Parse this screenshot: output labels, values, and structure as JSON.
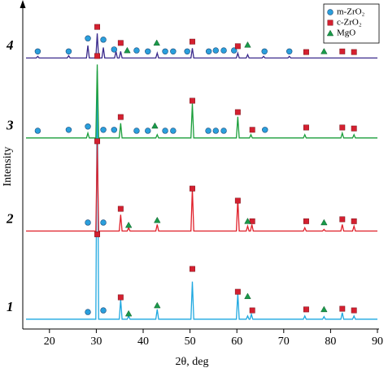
{
  "chart_data": {
    "type": "line",
    "xlabel": "2θ, deg",
    "ylabel": "Intensity",
    "xlim": [
      15,
      90
    ],
    "xticks": [
      20,
      30,
      40,
      50,
      60,
      70,
      80,
      90
    ],
    "ylim": [
      0,
      100
    ],
    "legend": "upper right",
    "patterns": [
      {
        "label": "1",
        "color": "#1fa8e0",
        "x": [
          15,
          29.9,
          30.2,
          30.5,
          34.9,
          35.2,
          35.5,
          36.6,
          36.9,
          37.2,
          42.7,
          43,
          43.3,
          50.2,
          50.5,
          50.8,
          59.9,
          60.2,
          60.5,
          62,
          62.3,
          62.6,
          62.8,
          63.1,
          63.4,
          74.2,
          74.5,
          74.8,
          78.3,
          78.6,
          78.9,
          82.2,
          82.5,
          82.8,
          84.7,
          85,
          85.3,
          90
        ],
        "values": [
          3,
          3,
          79,
          3,
          3,
          9,
          3,
          3,
          4,
          3,
          3,
          6,
          3,
          3,
          14.5,
          3,
          3,
          11,
          3,
          3,
          4,
          3,
          3,
          4.5,
          3,
          3,
          4,
          3,
          3,
          3.8,
          3,
          3,
          5,
          3,
          3,
          4,
          3,
          3
        ]
      },
      {
        "label": "2",
        "color": "#e0202a",
        "x": [
          15,
          29.9,
          30.2,
          30.5,
          34.9,
          35.2,
          35.5,
          36.6,
          36.9,
          37.2,
          42.7,
          43,
          43.3,
          50.2,
          50.5,
          50.8,
          59.9,
          60.2,
          60.5,
          62,
          62.3,
          62.6,
          62.9,
          63.2,
          63.5,
          74.2,
          74.5,
          74.8,
          78.3,
          78.6,
          78.9,
          82.2,
          82.5,
          82.8,
          84.7,
          85,
          85.3,
          90
        ],
        "values": [
          30,
          30,
          57,
          30,
          30,
          35,
          30,
          30,
          31,
          30,
          30,
          32,
          30,
          30,
          43,
          30,
          30,
          40,
          30,
          30,
          31.5,
          30,
          30,
          32,
          30,
          30,
          31,
          30,
          30,
          30.5,
          30,
          30,
          32,
          30,
          30,
          31.5,
          30,
          30
        ]
      },
      {
        "label": "3",
        "color": "#1a9e3a",
        "x": [
          15,
          27.9,
          28.2,
          28.5,
          29.9,
          30.2,
          30.5,
          34.9,
          35.2,
          35.5,
          42.7,
          43,
          43.3,
          50.2,
          50.5,
          50.8,
          59.9,
          60.2,
          60.5,
          62.7,
          63,
          63.3,
          74.2,
          74.5,
          74.8,
          82.2,
          82.5,
          82.8,
          84.7,
          85,
          85.3,
          90
        ],
        "values": [
          58.5,
          58.5,
          60,
          58.5,
          58.5,
          81,
          58.5,
          58.5,
          63,
          58.5,
          58.5,
          59.5,
          58.5,
          58.5,
          69,
          58.5,
          58.5,
          65,
          58.5,
          58.5,
          59.5,
          58.5,
          58.5,
          59.5,
          58.5,
          58.5,
          60,
          58.5,
          58.5,
          59.5,
          58.5,
          58.5
        ]
      },
      {
        "label": "4",
        "color": "#3a2a8c",
        "x": [
          15,
          17.2,
          17.5,
          17.8,
          23.8,
          24.1,
          24.4,
          27.9,
          28.2,
          28.5,
          29.9,
          30.2,
          30.5,
          31.2,
          31.5,
          31.8,
          33.9,
          34.2,
          34.5,
          34.9,
          35.2,
          35.5,
          42.7,
          43,
          43.3,
          50.2,
          50.5,
          50.8,
          59.9,
          60.2,
          60.5,
          62,
          62.3,
          62.6,
          65.4,
          65.7,
          66,
          70.9,
          71.2,
          71.5,
          90
        ],
        "values": [
          83,
          83,
          83.5,
          83,
          83,
          83.7,
          83,
          83,
          86.8,
          83,
          83,
          90.5,
          83,
          83,
          86.2,
          83,
          83,
          85,
          83,
          83,
          85,
          83,
          83,
          84.5,
          83,
          83,
          86,
          83,
          83,
          84.5,
          83,
          83,
          84,
          83,
          83,
          83.5,
          83,
          83,
          83.5,
          83,
          83
        ]
      }
    ],
    "markers": [
      {
        "name": "m-ZrO₂",
        "color": "#2a9fdc",
        "shape": "circle",
        "x": [
          28.2,
          31.5,
          28.2,
          31.5,
          17.5,
          24.1,
          28.2,
          31.5,
          33.8,
          38.6,
          41,
          44.7,
          46.4,
          53.9,
          55.5,
          57.2,
          66,
          17.5,
          24.1,
          28.2,
          31.5,
          33.8,
          38.6,
          41,
          44.7,
          46.4,
          49.4,
          54,
          55.5,
          57.2,
          59.4,
          65.9,
          71.2
        ],
        "values": [
          5.2,
          5.7,
          32.6,
          32.6,
          60.7,
          61,
          62,
          61,
          61,
          60.7,
          60.7,
          60.7,
          60.7,
          60.7,
          60.7,
          60.7,
          61,
          85,
          85,
          89,
          88.6,
          85.6,
          85.3,
          85,
          85,
          85,
          85,
          85,
          85.3,
          85.3,
          85.3,
          85,
          85
        ]
      },
      {
        "name": "c-ZrO₂",
        "color": "#d42030",
        "shape": "square",
        "x": [
          30.2,
          35.2,
          50.5,
          60.2,
          63.3,
          74.8,
          82.5,
          85,
          30.2,
          35.2,
          50.5,
          60.2,
          63.3,
          74.8,
          82.5,
          85,
          30.2,
          35.2,
          50.5,
          60.2,
          63.3,
          74.8,
          82.5,
          85,
          30.2,
          35.2,
          50.5,
          60.2,
          74.8,
          82.5,
          85
        ],
        "values": [
          29,
          9.7,
          18.4,
          11.4,
          5.7,
          6,
          6.2,
          5.7,
          57.5,
          36.8,
          43,
          39.3,
          33,
          33,
          33.6,
          33,
          83.6,
          64.9,
          69.9,
          66.4,
          61,
          61.7,
          61.7,
          61.4,
          92.5,
          87.6,
          88,
          86.6,
          84.8,
          85,
          84.8
        ]
      },
      {
        "name": "MgO",
        "color": "#1a9a4a",
        "shape": "triangle",
        "x": [
          36.9,
          43,
          62.3,
          78.6,
          36.9,
          43,
          62.3,
          78.6,
          42.5,
          36.6,
          42.9,
          62.3,
          78.6
        ],
        "values": [
          4.7,
          7.2,
          10,
          6,
          31.8,
          33.3,
          33,
          32.6,
          62.2,
          85.3,
          87.6,
          87,
          85
        ]
      }
    ]
  }
}
